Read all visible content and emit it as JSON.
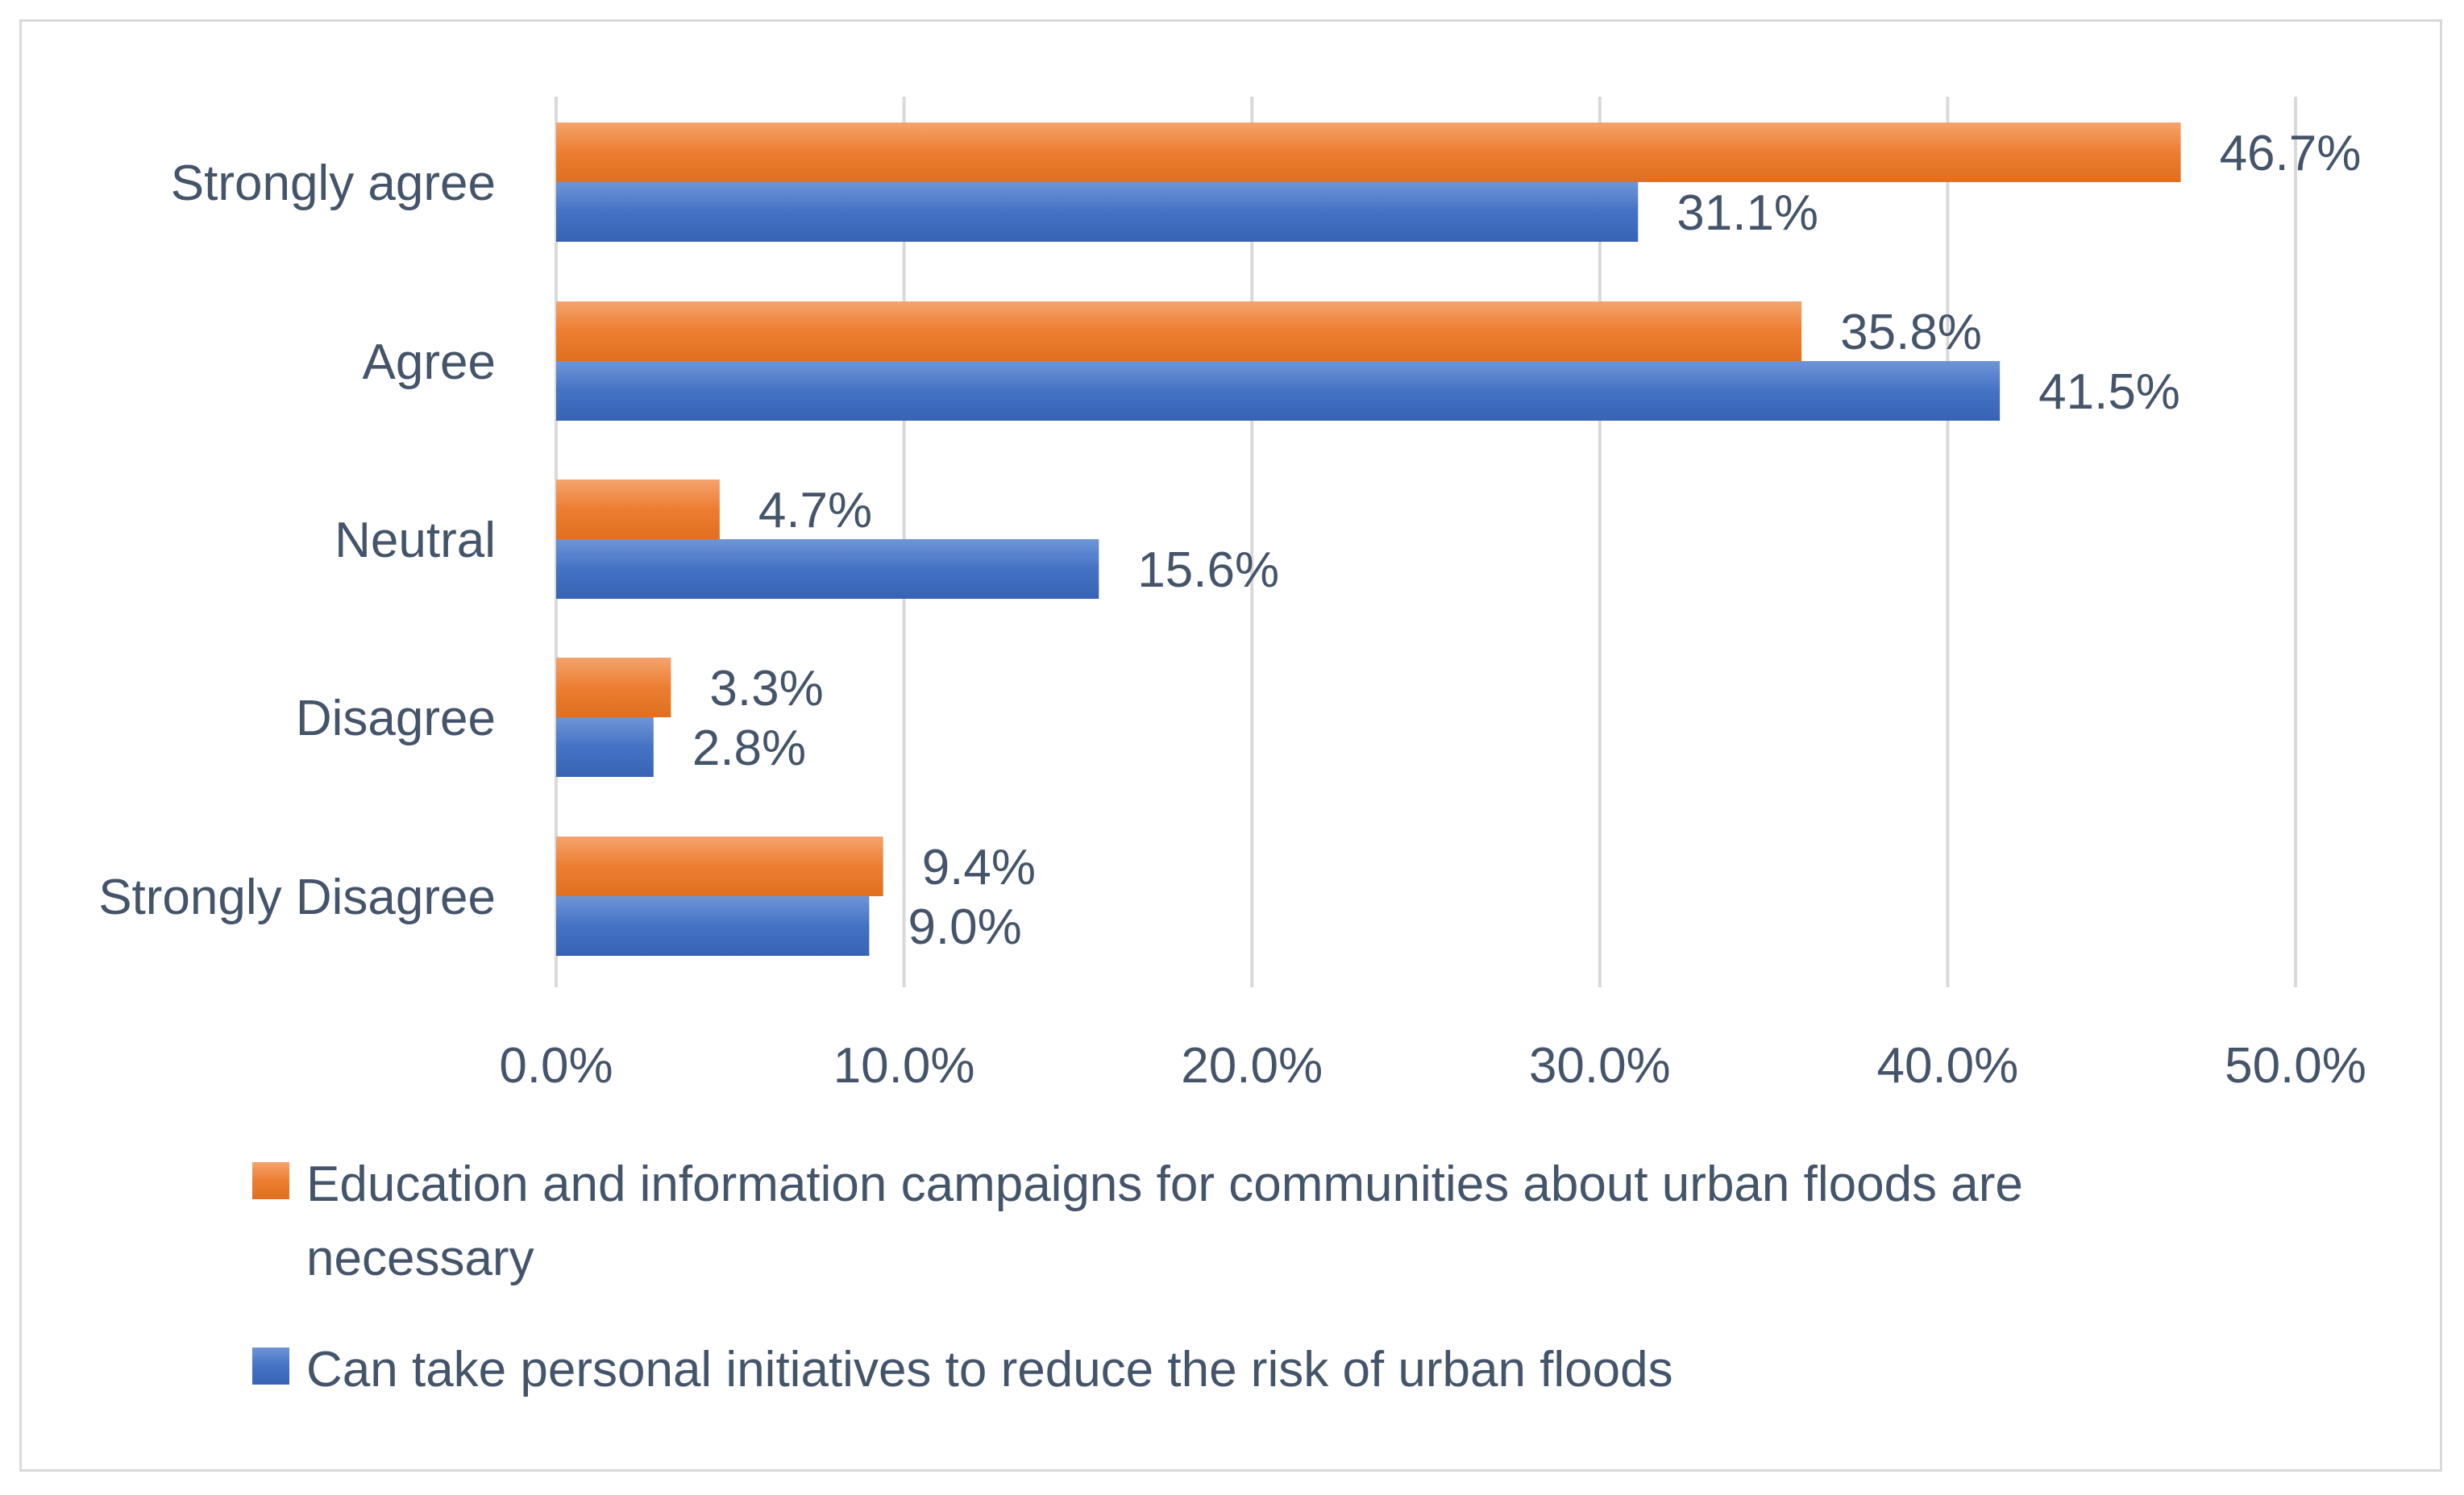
{
  "chart_data": {
    "type": "bar",
    "orientation": "horizontal",
    "categories": [
      "Strongly agree",
      "Agree",
      "Neutral",
      "Disagree",
      "Strongly Disagree"
    ],
    "series": [
      {
        "name": "Education and information campaigns for communities about urban floods are necessary",
        "legend_lines": [
          "Education and information campaigns for communities about urban floods are",
          "necessary"
        ],
        "color": "#ed7d31",
        "values": [
          46.7,
          35.8,
          4.7,
          3.3,
          9.4
        ],
        "labels": [
          "46.7%",
          "35.8%",
          "4.7%",
          "3.3%",
          "9.4%"
        ]
      },
      {
        "name": "Can take personal initiatives to reduce the risk of urban floods",
        "legend_lines": [
          "Can take personal initiatives to reduce the risk of urban floods"
        ],
        "color": "#4472c4",
        "values": [
          31.1,
          41.5,
          15.6,
          2.8,
          9.0
        ],
        "labels": [
          "31.1%",
          "41.5%",
          "15.6%",
          "2.8%",
          "9.0%"
        ]
      }
    ],
    "xlim": [
      0,
      50
    ],
    "xticks": [
      0,
      10,
      20,
      30,
      40,
      50
    ],
    "xtick_labels": [
      "0.0%",
      "10.0%",
      "20.0%",
      "30.0%",
      "40.0%",
      "50.0%"
    ],
    "grid": true,
    "legend_position": "bottom",
    "title": "",
    "xlabel": "",
    "ylabel": ""
  }
}
